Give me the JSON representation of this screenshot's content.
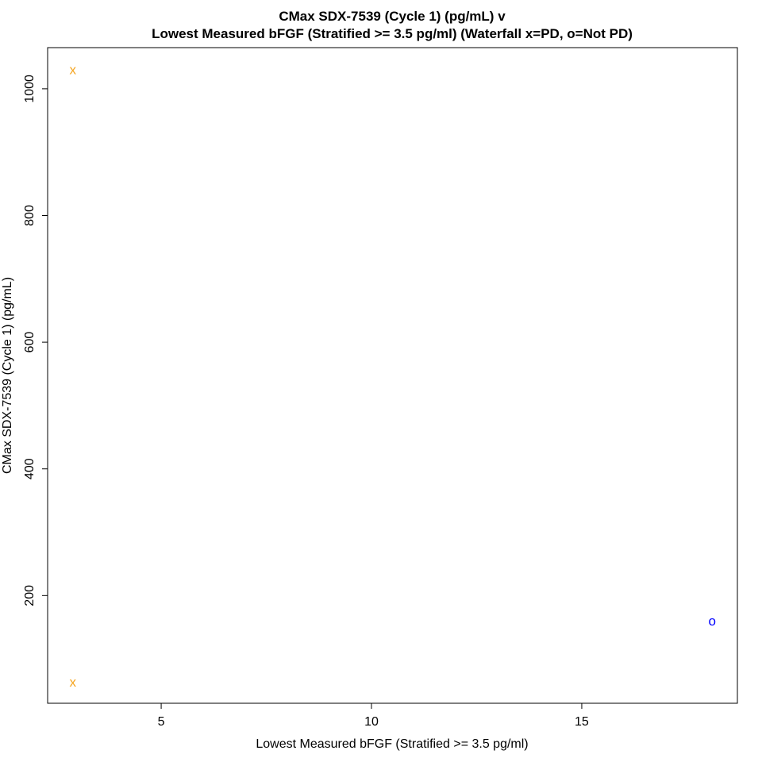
{
  "chart_data": {
    "type": "scatter",
    "title": "CMax SDX-7539 (Cycle 1) (pg/mL) v",
    "subtitle": "Lowest Measured bFGF (Stratified >= 3.5 pg/ml) (Waterfall x=PD, o=Not PD)",
    "xlabel": "Lowest Measured bFGF (Stratified >= 3.5 pg/ml)",
    "ylabel": "CMax SDX-7539 (Cycle 1) (pg/mL)",
    "xlim": [
      2.3,
      18.7
    ],
    "ylim": [
      30,
      1065
    ],
    "x_ticks": [
      5,
      10,
      15
    ],
    "y_ticks": [
      200,
      400,
      600,
      800,
      1000
    ],
    "grid": false,
    "legend": "none",
    "series": [
      {
        "marker": "x",
        "color": "#f5a623",
        "points": [
          {
            "x": 2.9,
            "y": 1030
          },
          {
            "x": 2.9,
            "y": 63
          }
        ]
      },
      {
        "marker": "o",
        "color": "#0000ff",
        "points": [
          {
            "x": 18.1,
            "y": 160
          }
        ]
      }
    ]
  }
}
